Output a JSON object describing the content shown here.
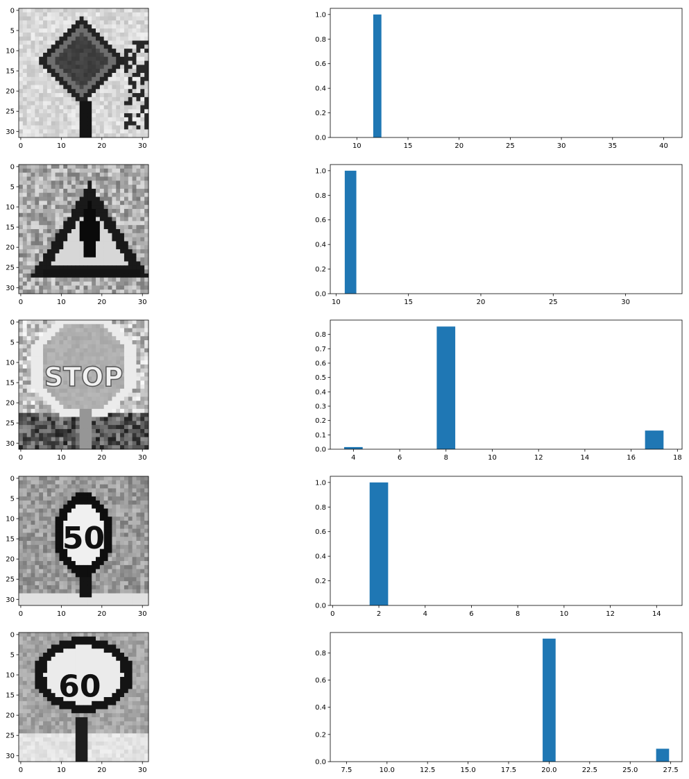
{
  "figure": {
    "rows": [
      {
        "image_panel": {
          "subject": "priority-road-sign",
          "ticks": [
            0,
            10,
            20,
            30
          ],
          "yticks": [
            0,
            5,
            10,
            15,
            20,
            25,
            30
          ]
        },
        "chart_data": {
          "type": "bar",
          "x": [
            12
          ],
          "values": [
            1.0
          ],
          "bar_width": 0.8,
          "xlim": [
            7.4,
            41.8
          ],
          "ylim": [
            0,
            1.05
          ],
          "xticks": [
            10,
            15,
            20,
            25,
            30,
            35,
            40
          ],
          "xtick_labels": [
            "10",
            "15",
            "20",
            "25",
            "30",
            "35",
            "40"
          ],
          "yticks": [
            0,
            0.2,
            0.4,
            0.6,
            0.8,
            1.0
          ],
          "ytick_labels": [
            "0.0",
            "0.2",
            "0.4",
            "0.6",
            "0.8",
            "1.0"
          ],
          "grid": false,
          "color": "#1f77b4"
        }
      },
      {
        "image_panel": {
          "subject": "general-caution-triangle-sign",
          "ticks": [
            0,
            10,
            20,
            30
          ],
          "yticks": [
            0,
            5,
            10,
            15,
            20,
            25,
            30
          ]
        },
        "chart_data": {
          "type": "bar",
          "x": [
            11
          ],
          "values": [
            1.0
          ],
          "bar_width": 0.8,
          "xlim": [
            9.6,
            33.9
          ],
          "ylim": [
            0,
            1.05
          ],
          "xticks": [
            10,
            15,
            20,
            25,
            30
          ],
          "xtick_labels": [
            "10",
            "15",
            "20",
            "25",
            "30"
          ],
          "yticks": [
            0,
            0.2,
            0.4,
            0.6,
            0.8,
            1.0
          ],
          "ytick_labels": [
            "0.0",
            "0.2",
            "0.4",
            "0.6",
            "0.8",
            "1.0"
          ],
          "grid": false,
          "color": "#1f77b4"
        }
      },
      {
        "image_panel": {
          "subject": "stop-sign",
          "sign_text": "STOP",
          "ticks": [
            0,
            10,
            20,
            30
          ],
          "yticks": [
            0,
            5,
            10,
            15,
            20,
            25,
            30
          ]
        },
        "chart_data": {
          "type": "bar",
          "x": [
            4,
            8,
            17
          ],
          "values": [
            0.015,
            0.855,
            0.13
          ],
          "bar_width": 0.8,
          "xlim": [
            3.0,
            18.2
          ],
          "ylim": [
            0,
            0.9
          ],
          "xticks": [
            4,
            6,
            8,
            10,
            12,
            14,
            16,
            18
          ],
          "xtick_labels": [
            "4",
            "6",
            "8",
            "10",
            "12",
            "14",
            "16",
            "18"
          ],
          "yticks": [
            0,
            0.1,
            0.2,
            0.3,
            0.4,
            0.5,
            0.6,
            0.7,
            0.8
          ],
          "ytick_labels": [
            "0.0",
            "0.1",
            "0.2",
            "0.3",
            "0.4",
            "0.5",
            "0.6",
            "0.7",
            "0.8"
          ],
          "grid": false,
          "color": "#1f77b4"
        }
      },
      {
        "image_panel": {
          "subject": "speed-limit-50-sign",
          "sign_text": "50",
          "ticks": [
            0,
            10,
            20,
            30
          ],
          "yticks": [
            0,
            5,
            10,
            15,
            20,
            25,
            30
          ]
        },
        "chart_data": {
          "type": "bar",
          "x": [
            2
          ],
          "values": [
            1.0
          ],
          "bar_width": 0.8,
          "xlim": [
            -0.1,
            15.1
          ],
          "ylim": [
            0,
            1.05
          ],
          "xticks": [
            0,
            2,
            4,
            6,
            8,
            10,
            12,
            14
          ],
          "xtick_labels": [
            "0",
            "2",
            "4",
            "6",
            "8",
            "10",
            "12",
            "14"
          ],
          "yticks": [
            0,
            0.2,
            0.4,
            0.6,
            0.8,
            1.0
          ],
          "ytick_labels": [
            "0.0",
            "0.2",
            "0.4",
            "0.6",
            "0.8",
            "1.0"
          ],
          "grid": false,
          "color": "#1f77b4"
        }
      },
      {
        "image_panel": {
          "subject": "speed-limit-60-sign",
          "sign_text": "60",
          "ticks": [
            0,
            10,
            20,
            30
          ],
          "yticks": [
            0,
            5,
            10,
            15,
            20,
            25,
            30
          ]
        },
        "chart_data": {
          "type": "bar",
          "x": [
            20,
            27
          ],
          "values": [
            0.905,
            0.095
          ],
          "bar_width": 0.8,
          "xlim": [
            6.5,
            28.2
          ],
          "ylim": [
            0,
            0.95
          ],
          "xticks": [
            7.5,
            10,
            12.5,
            15,
            17.5,
            20,
            22.5,
            25,
            27.5
          ],
          "xtick_labels": [
            "7.5",
            "10.0",
            "12.5",
            "15.0",
            "17.5",
            "20.0",
            "22.5",
            "25.0",
            "27.5"
          ],
          "yticks": [
            0,
            0.2,
            0.4,
            0.6,
            0.8
          ],
          "ytick_labels": [
            "0.0",
            "0.2",
            "0.4",
            "0.6",
            "0.8"
          ],
          "grid": false,
          "color": "#1f77b4"
        }
      }
    ]
  }
}
